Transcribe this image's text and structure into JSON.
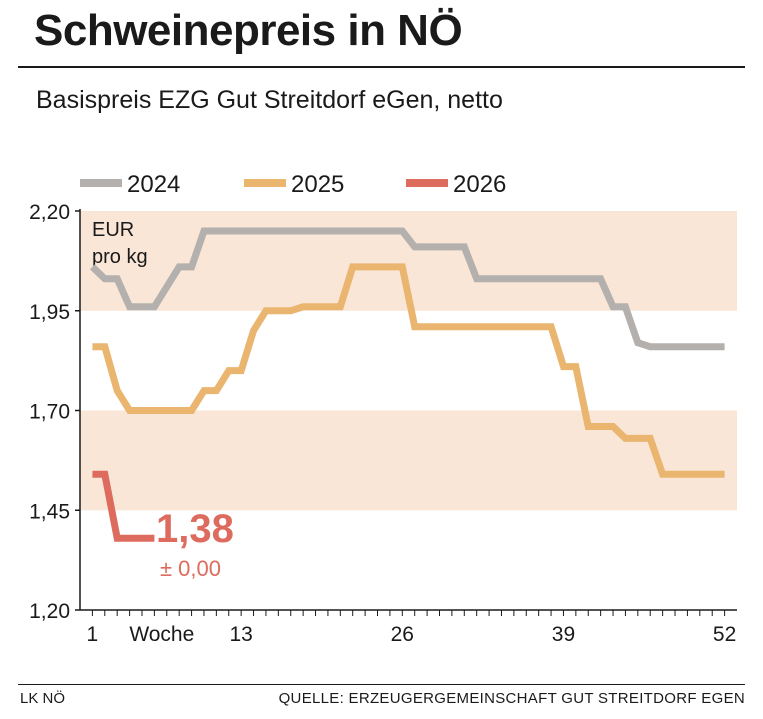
{
  "header": {
    "title": "Schweinepreis in NÖ",
    "subtitle": "Basispreis EZG Gut Streitdorf eGen, netto"
  },
  "footer": {
    "left": "LK NÖ",
    "right": "QUELLE: ERZEUGERGEMEINSCHAFT GUT STREITDORF EGEN"
  },
  "colors": {
    "2024": "#b3b0ad",
    "2025": "#e9b56f",
    "2026": "#dd6b5e",
    "band": "#f9e6d6",
    "axis": "#1a1a1a"
  },
  "chart_data": {
    "type": "line",
    "unit_label": [
      "EUR",
      "pro kg"
    ],
    "xlabel": "Woche",
    "x_ticks": [
      1,
      13,
      26,
      39,
      52
    ],
    "xlim": [
      0,
      53
    ],
    "ylim": [
      1.2,
      2.2
    ],
    "y_ticks": [
      "1,20",
      "1,45",
      "1,70",
      "1,95",
      "2,20"
    ],
    "y_tick_values": [
      1.2,
      1.45,
      1.7,
      1.95,
      2.2
    ],
    "bands": [
      [
        1.95,
        2.2
      ],
      [
        1.45,
        1.7
      ]
    ],
    "legend": [
      "2024",
      "2025",
      "2026"
    ],
    "series": [
      {
        "name": "2024",
        "points": [
          [
            1,
            2.06
          ],
          [
            2,
            2.03
          ],
          [
            3,
            2.03
          ],
          [
            4,
            1.96
          ],
          [
            5,
            1.96
          ],
          [
            6,
            1.96
          ],
          [
            7,
            2.01
          ],
          [
            8,
            2.06
          ],
          [
            9,
            2.06
          ],
          [
            10,
            2.15
          ],
          [
            11,
            2.15
          ],
          [
            12,
            2.15
          ],
          [
            13,
            2.15
          ],
          [
            14,
            2.15
          ],
          [
            15,
            2.15
          ],
          [
            16,
            2.15
          ],
          [
            17,
            2.15
          ],
          [
            18,
            2.15
          ],
          [
            19,
            2.15
          ],
          [
            20,
            2.15
          ],
          [
            21,
            2.15
          ],
          [
            22,
            2.15
          ],
          [
            23,
            2.15
          ],
          [
            24,
            2.15
          ],
          [
            25,
            2.15
          ],
          [
            26,
            2.15
          ],
          [
            27,
            2.11
          ],
          [
            28,
            2.11
          ],
          [
            29,
            2.11
          ],
          [
            30,
            2.11
          ],
          [
            31,
            2.11
          ],
          [
            32,
            2.03
          ],
          [
            33,
            2.03
          ],
          [
            34,
            2.03
          ],
          [
            35,
            2.03
          ],
          [
            36,
            2.03
          ],
          [
            37,
            2.03
          ],
          [
            38,
            2.03
          ],
          [
            39,
            2.03
          ],
          [
            40,
            2.03
          ],
          [
            41,
            2.03
          ],
          [
            42,
            2.03
          ],
          [
            43,
            1.96
          ],
          [
            44,
            1.96
          ],
          [
            45,
            1.87
          ],
          [
            46,
            1.86
          ],
          [
            47,
            1.86
          ],
          [
            48,
            1.86
          ],
          [
            49,
            1.86
          ],
          [
            50,
            1.86
          ],
          [
            51,
            1.86
          ],
          [
            52,
            1.86
          ]
        ]
      },
      {
        "name": "2025",
        "points": [
          [
            1,
            1.86
          ],
          [
            2,
            1.86
          ],
          [
            3,
            1.75
          ],
          [
            4,
            1.7
          ],
          [
            5,
            1.7
          ],
          [
            6,
            1.7
          ],
          [
            7,
            1.7
          ],
          [
            8,
            1.7
          ],
          [
            9,
            1.7
          ],
          [
            10,
            1.75
          ],
          [
            11,
            1.75
          ],
          [
            12,
            1.8
          ],
          [
            13,
            1.8
          ],
          [
            14,
            1.9
          ],
          [
            15,
            1.95
          ],
          [
            16,
            1.95
          ],
          [
            17,
            1.95
          ],
          [
            18,
            1.96
          ],
          [
            19,
            1.96
          ],
          [
            20,
            1.96
          ],
          [
            21,
            1.96
          ],
          [
            22,
            2.06
          ],
          [
            23,
            2.06
          ],
          [
            24,
            2.06
          ],
          [
            25,
            2.06
          ],
          [
            26,
            2.06
          ],
          [
            27,
            1.91
          ],
          [
            28,
            1.91
          ],
          [
            29,
            1.91
          ],
          [
            30,
            1.91
          ],
          [
            31,
            1.91
          ],
          [
            32,
            1.91
          ],
          [
            33,
            1.91
          ],
          [
            34,
            1.91
          ],
          [
            35,
            1.91
          ],
          [
            36,
            1.91
          ],
          [
            37,
            1.91
          ],
          [
            38,
            1.91
          ],
          [
            39,
            1.81
          ],
          [
            40,
            1.81
          ],
          [
            41,
            1.66
          ],
          [
            42,
            1.66
          ],
          [
            43,
            1.66
          ],
          [
            44,
            1.63
          ],
          [
            45,
            1.63
          ],
          [
            46,
            1.63
          ],
          [
            47,
            1.54
          ],
          [
            48,
            1.54
          ],
          [
            49,
            1.54
          ],
          [
            50,
            1.54
          ],
          [
            51,
            1.54
          ],
          [
            52,
            1.54
          ]
        ]
      },
      {
        "name": "2026",
        "points": [
          [
            1,
            1.54
          ],
          [
            2,
            1.54
          ],
          [
            3,
            1.38
          ],
          [
            4,
            1.38
          ],
          [
            5,
            1.38
          ],
          [
            6,
            1.38
          ]
        ]
      }
    ],
    "annotation": {
      "value": "1,38",
      "change": "± 0,00"
    }
  }
}
